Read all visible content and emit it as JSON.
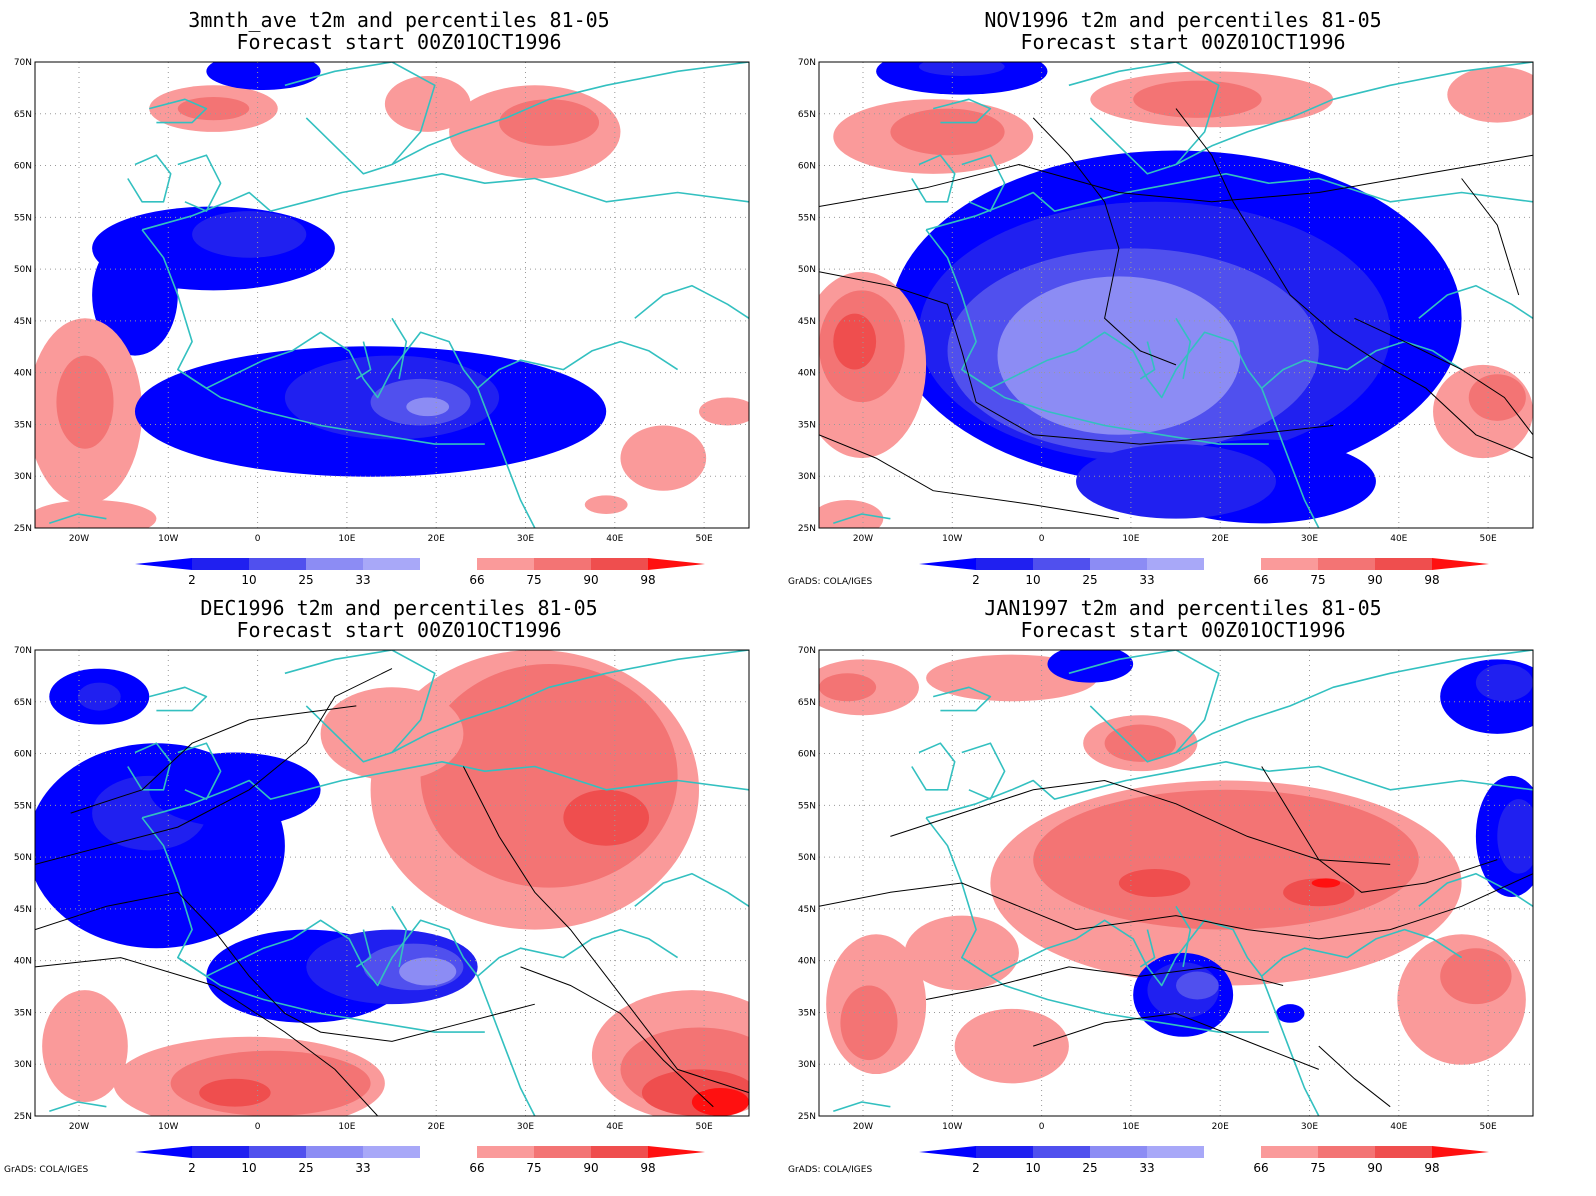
{
  "panels": [
    {
      "id": "p1",
      "title": "3mnth_ave t2m and percentiles 81-05",
      "subtitle": "Forecast start 00Z01OCT1996",
      "credit": ""
    },
    {
      "id": "p2",
      "title": "NOV1996 t2m and percentiles 81-05",
      "subtitle": "Forecast start 00Z01OCT1996",
      "credit": "GrADS: COLA/IGES"
    },
    {
      "id": "p3",
      "title": "DEC1996 t2m and percentiles 81-05",
      "subtitle": "Forecast start 00Z01OCT1996",
      "credit": "GrADS: COLA/IGES"
    },
    {
      "id": "p4",
      "title": "JAN1997 t2m and percentiles 81-05",
      "subtitle": "Forecast start 00Z01OCT1996",
      "credit": "GrADS: COLA/IGES"
    }
  ],
  "lat_labels": [
    "70N",
    "65N",
    "60N",
    "55N",
    "50N",
    "45N",
    "40N",
    "35N",
    "30N",
    "25N"
  ],
  "lon_labels": [
    "20W",
    "10W",
    "0",
    "10E",
    "20E",
    "30E",
    "40E",
    "50E"
  ],
  "colorbar": {
    "labels": [
      "2",
      "10",
      "25",
      "33",
      "66",
      "75",
      "90",
      "98"
    ],
    "colors": [
      "#0000ff",
      "#2020f0",
      "#5050ee",
      "#8c8cf4",
      "#a8a8f8",
      "#ffffff",
      "#fa9a9a",
      "#f37474",
      "#ef4e4e",
      "#ff1010"
    ]
  },
  "colors": {
    "coast": "#33c0c0",
    "contour": "#000000",
    "grid": "#9a9a9a"
  }
}
